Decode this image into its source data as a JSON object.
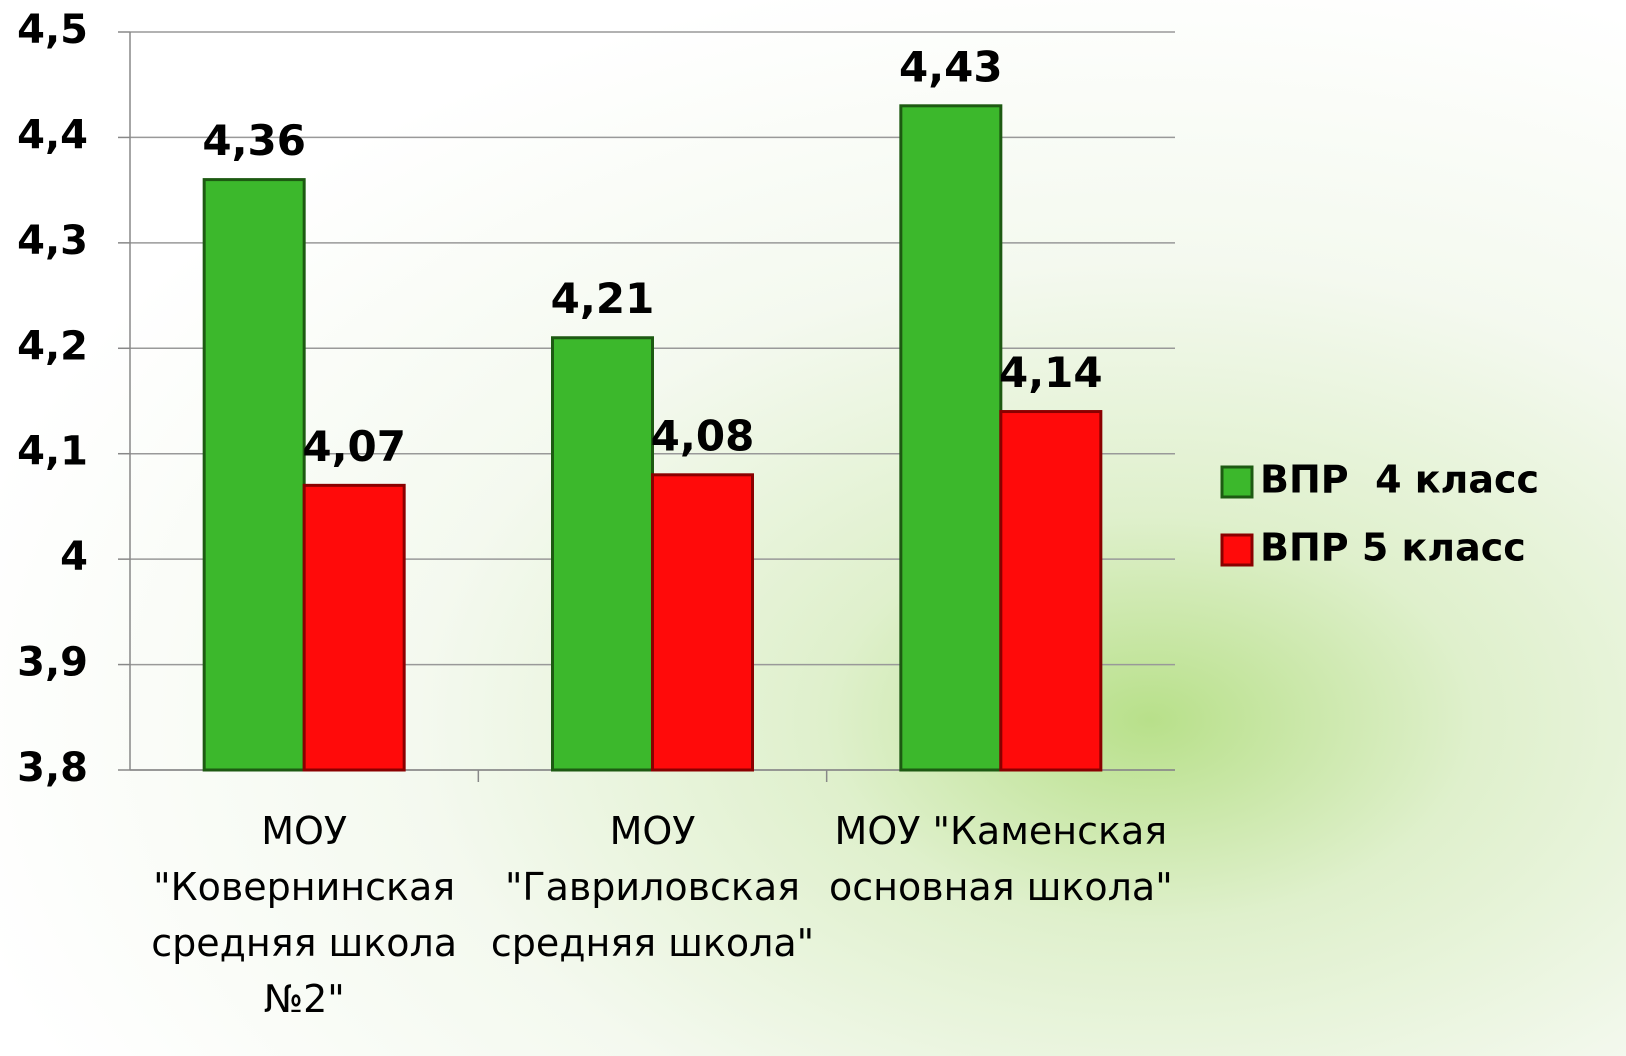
{
  "chart_data": {
    "type": "bar",
    "categories": [
      "МОУ \"Ковернинская средняя школа №2\"",
      "МОУ \"Гавриловская средняя школа\"",
      "МОУ \"Каменская основная школа\""
    ],
    "series": [
      {
        "name": "ВПР  4 класс",
        "color": "#3cb82c",
        "values": [
          4.36,
          4.21,
          4.43
        ],
        "value_labels": [
          "4,36",
          "4,21",
          "4,43"
        ]
      },
      {
        "name": "ВПР 5 класс",
        "color": "#ff0a0a",
        "values": [
          4.07,
          4.08,
          4.14
        ],
        "value_labels": [
          "4,07",
          "4,08",
          "4,14"
        ]
      }
    ],
    "ylim": [
      3.8,
      4.5
    ],
    "yticks": [
      {
        "value": 3.8,
        "label": "3,8"
      },
      {
        "value": 3.9,
        "label": "3,9"
      },
      4,
      {
        "value": 4.1,
        "label": "4,1"
      },
      {
        "value": 4.2,
        "label": "4,2"
      },
      {
        "value": 4.3,
        "label": "4,3"
      },
      {
        "value": 4.4,
        "label": "4,4"
      },
      {
        "value": 4.5,
        "label": "4,5"
      }
    ],
    "grid": true,
    "legend": "right"
  }
}
